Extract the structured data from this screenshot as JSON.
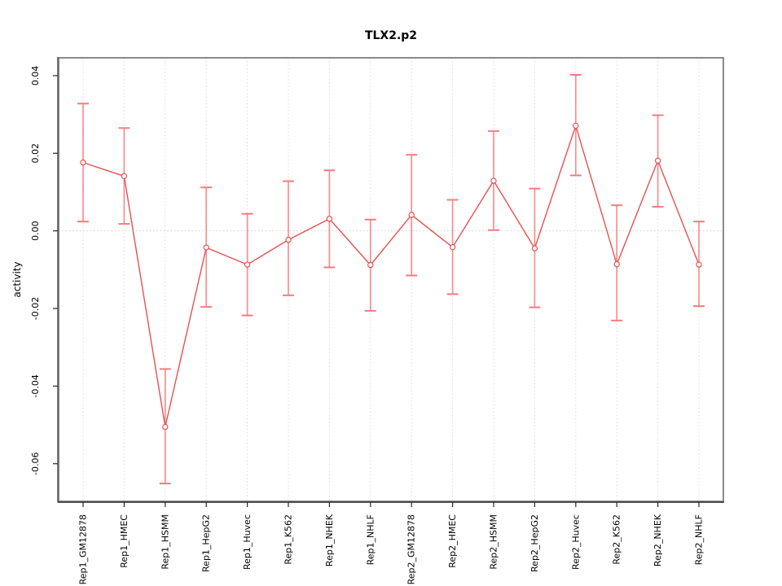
{
  "figure": {
    "title": "TLX2.p2",
    "ylabel": "activity"
  },
  "chart_data": {
    "type": "line",
    "title": "TLX2.p2",
    "xlabel": "",
    "ylabel": "activity",
    "legend_position": "none",
    "categories": [
      "Rep1_GM12878",
      "Rep1_HMEC",
      "Rep1_HSMM",
      "Rep1_HepG2",
      "Rep1_Huvec",
      "Rep1_K562",
      "Rep1_NHEK",
      "Rep1_NHLF",
      "Rep2_GM12878",
      "Rep2_HMEC",
      "Rep2_HSMM",
      "Rep2_HepG2",
      "Rep2_Huvec",
      "Rep2_K562",
      "Rep2_NHEK",
      "Rep2_NHLF"
    ],
    "series": [
      {
        "name": "activity",
        "values": [
          0.0176,
          0.0141,
          -0.0505,
          -0.0043,
          -0.0087,
          -0.0023,
          0.0031,
          -0.0088,
          0.0041,
          -0.0042,
          0.0129,
          -0.0045,
          0.0271,
          -0.0086,
          0.0181,
          -0.0087
        ],
        "error_low": [
          0.0024,
          0.0018,
          -0.0651,
          -0.0196,
          -0.0218,
          -0.0166,
          -0.0094,
          -0.0206,
          -0.0115,
          -0.0163,
          0.0002,
          -0.0197,
          0.0143,
          -0.0231,
          0.0062,
          -0.0194
        ],
        "error_high": [
          0.0328,
          0.0265,
          -0.0356,
          0.0112,
          0.0044,
          0.0128,
          0.0156,
          0.0029,
          0.0196,
          0.008,
          0.0257,
          0.0109,
          0.0402,
          0.0066,
          0.0298,
          0.0024
        ]
      }
    ],
    "ylim": [
      -0.0697,
      0.0446
    ],
    "yticks": [
      0.04,
      0.02,
      0.0,
      -0.02,
      -0.04,
      -0.06
    ],
    "ytick_labels": [
      "0.04",
      "0.02",
      "0.00",
      "-0.02",
      "-0.04",
      "-0.06"
    ],
    "grid": {
      "vertical_dotted": true,
      "zero_line_dotted": true,
      "horizontal_other": false
    },
    "colors": {
      "series": "#e85151",
      "error_bar": "#f47c7c",
      "marker_fill": "#ffffff",
      "grid": "#dcdcdc",
      "zero_line": "#d2d2d2",
      "box": "#8a8a8a",
      "axis": "#2a2a2a",
      "text": "#000000"
    }
  }
}
